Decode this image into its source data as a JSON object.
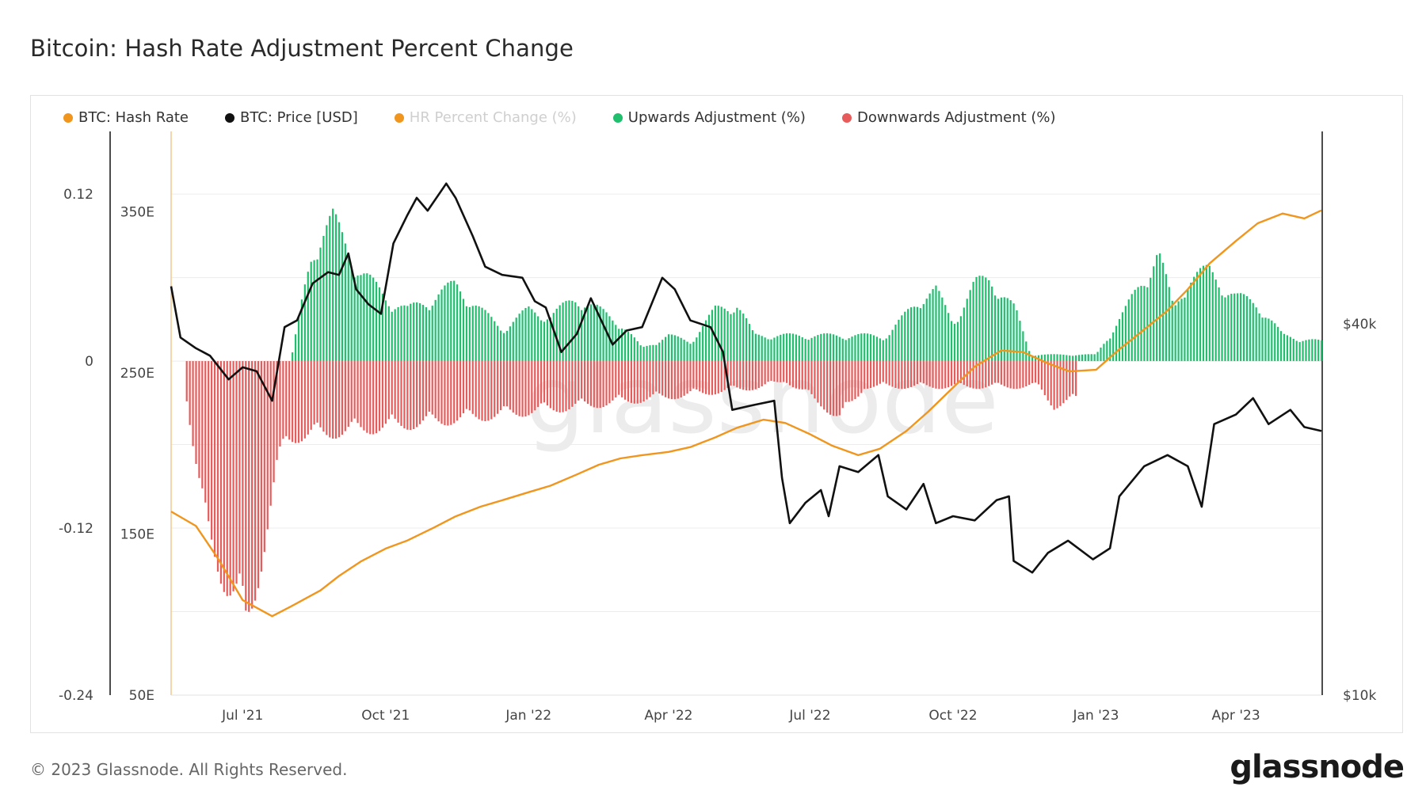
{
  "title": "Bitcoin: Hash Rate Adjustment Percent Change",
  "footer": {
    "copyright": "© 2023 Glassnode. All Rights Reserved.",
    "logo": "glassnode"
  },
  "watermark": "glassnode",
  "legend": [
    {
      "label": "BTC: Hash Rate",
      "color": "#f0961e",
      "enabled": true
    },
    {
      "label": "BTC: Price [USD]",
      "color": "#111111",
      "enabled": true
    },
    {
      "label": "HR Percent Change (%)",
      "color": "#f0961e",
      "enabled": false
    },
    {
      "label": "Upwards Adjustment (%)",
      "color": "#1fbf6e",
      "enabled": true
    },
    {
      "label": "Downwards Adjustment (%)",
      "color": "#e85b5b",
      "enabled": true
    }
  ],
  "chart_data": {
    "type": "line",
    "title": "Bitcoin: Hash Rate Adjustment Percent Change",
    "x_range": [
      "2021-05-16",
      "2023-05-26"
    ],
    "x_ticks": [
      "Jul '21",
      "Oct '21",
      "Jan '22",
      "Apr '22",
      "Jul '22",
      "Oct '22",
      "Jan '23",
      "Apr '23"
    ],
    "y_axes": {
      "percent_change": {
        "ticks": [
          "0.12",
          "0",
          "-0.12",
          "-0.24"
        ],
        "range": [
          -0.24,
          0.165
        ],
        "side": "left-outer"
      },
      "hash_rate": {
        "ticks": [
          "350E",
          "250E",
          "150E",
          "50E"
        ],
        "range": [
          50,
          400
        ],
        "side": "left-inner"
      },
      "price_usd": {
        "ticks": [
          "$40k",
          "$10k"
        ],
        "range": [
          10000,
          82000
        ],
        "scale": "log",
        "side": "right"
      }
    },
    "grid": true,
    "legend_position": "top-left",
    "series": [
      {
        "name": "BTC: Hash Rate",
        "color": "#f0961e",
        "axis": "hash_rate",
        "points": [
          [
            "2021-05-16",
            164
          ],
          [
            "2021-06-01",
            155
          ],
          [
            "2021-06-15",
            135
          ],
          [
            "2021-07-01",
            109
          ],
          [
            "2021-07-20",
            99
          ],
          [
            "2021-08-01",
            105
          ],
          [
            "2021-08-20",
            115
          ],
          [
            "2021-09-01",
            124
          ],
          [
            "2021-09-15",
            133
          ],
          [
            "2021-10-01",
            141
          ],
          [
            "2021-10-15",
            146
          ],
          [
            "2021-11-01",
            154
          ],
          [
            "2021-11-15",
            161
          ],
          [
            "2021-12-01",
            167
          ],
          [
            "2021-12-15",
            171
          ],
          [
            "2022-01-01",
            176
          ],
          [
            "2022-01-15",
            180
          ],
          [
            "2022-02-01",
            187
          ],
          [
            "2022-02-15",
            193
          ],
          [
            "2022-03-01",
            197
          ],
          [
            "2022-03-15",
            199
          ],
          [
            "2022-04-01",
            201
          ],
          [
            "2022-04-15",
            204
          ],
          [
            "2022-05-01",
            210
          ],
          [
            "2022-05-15",
            216
          ],
          [
            "2022-06-01",
            221
          ],
          [
            "2022-06-15",
            219
          ],
          [
            "2022-07-01",
            212
          ],
          [
            "2022-07-15",
            205
          ],
          [
            "2022-08-01",
            199
          ],
          [
            "2022-08-15",
            203
          ],
          [
            "2022-09-01",
            214
          ],
          [
            "2022-09-15",
            226
          ],
          [
            "2022-10-01",
            241
          ],
          [
            "2022-10-15",
            254
          ],
          [
            "2022-11-01",
            264
          ],
          [
            "2022-11-15",
            263
          ],
          [
            "2022-12-01",
            256
          ],
          [
            "2022-12-15",
            251
          ],
          [
            "2023-01-01",
            252
          ],
          [
            "2023-01-15",
            264
          ],
          [
            "2023-02-01",
            277
          ],
          [
            "2023-02-15",
            288
          ],
          [
            "2023-03-01",
            302
          ],
          [
            "2023-03-15",
            318
          ],
          [
            "2023-04-01",
            332
          ],
          [
            "2023-04-15",
            343
          ],
          [
            "2023-05-01",
            349
          ],
          [
            "2023-05-15",
            346
          ],
          [
            "2023-05-26",
            351
          ]
        ]
      },
      {
        "name": "BTC: Price [USD]",
        "color": "#111111",
        "axis": "price_usd",
        "points": [
          [
            "2021-05-16",
            46000
          ],
          [
            "2021-05-22",
            38000
          ],
          [
            "2021-06-01",
            36500
          ],
          [
            "2021-06-10",
            35500
          ],
          [
            "2021-06-22",
            32500
          ],
          [
            "2021-07-01",
            34000
          ],
          [
            "2021-07-10",
            33500
          ],
          [
            "2021-07-20",
            30000
          ],
          [
            "2021-07-28",
            39500
          ],
          [
            "2021-08-05",
            40500
          ],
          [
            "2021-08-15",
            46500
          ],
          [
            "2021-08-25",
            48500
          ],
          [
            "2021-09-01",
            48000
          ],
          [
            "2021-09-07",
            52000
          ],
          [
            "2021-09-12",
            45500
          ],
          [
            "2021-09-20",
            43000
          ],
          [
            "2021-09-28",
            41500
          ],
          [
            "2021-10-06",
            54000
          ],
          [
            "2021-10-15",
            60000
          ],
          [
            "2021-10-21",
            64000
          ],
          [
            "2021-10-28",
            61000
          ],
          [
            "2021-11-09",
            67500
          ],
          [
            "2021-11-15",
            64000
          ],
          [
            "2021-11-26",
            55500
          ],
          [
            "2021-12-04",
            49500
          ],
          [
            "2021-12-15",
            48000
          ],
          [
            "2021-12-28",
            47500
          ],
          [
            "2022-01-05",
            43500
          ],
          [
            "2022-01-12",
            42500
          ],
          [
            "2022-01-22",
            36000
          ],
          [
            "2022-02-01",
            38500
          ],
          [
            "2022-02-10",
            44000
          ],
          [
            "2022-02-24",
            37000
          ],
          [
            "2022-03-05",
            39000
          ],
          [
            "2022-03-15",
            39500
          ],
          [
            "2022-03-28",
            47500
          ],
          [
            "2022-04-05",
            45500
          ],
          [
            "2022-04-15",
            40500
          ],
          [
            "2022-04-28",
            39500
          ],
          [
            "2022-05-06",
            36000
          ],
          [
            "2022-05-12",
            29000
          ],
          [
            "2022-05-25",
            29500
          ],
          [
            "2022-06-08",
            30000
          ],
          [
            "2022-06-13",
            22500
          ],
          [
            "2022-06-18",
            19000
          ],
          [
            "2022-06-28",
            20500
          ],
          [
            "2022-07-08",
            21500
          ],
          [
            "2022-07-13",
            19500
          ],
          [
            "2022-07-20",
            23500
          ],
          [
            "2022-08-01",
            23000
          ],
          [
            "2022-08-14",
            24500
          ],
          [
            "2022-08-20",
            21000
          ],
          [
            "2022-09-01",
            20000
          ],
          [
            "2022-09-12",
            22000
          ],
          [
            "2022-09-20",
            19000
          ],
          [
            "2022-10-01",
            19500
          ],
          [
            "2022-10-15",
            19200
          ],
          [
            "2022-10-29",
            20700
          ],
          [
            "2022-11-06",
            21000
          ],
          [
            "2022-11-09",
            16500
          ],
          [
            "2022-11-21",
            15800
          ],
          [
            "2022-12-01",
            17000
          ],
          [
            "2022-12-14",
            17800
          ],
          [
            "2022-12-30",
            16600
          ],
          [
            "2023-01-10",
            17300
          ],
          [
            "2023-01-16",
            21000
          ],
          [
            "2023-02-01",
            23500
          ],
          [
            "2023-02-16",
            24500
          ],
          [
            "2023-03-01",
            23500
          ],
          [
            "2023-03-10",
            20200
          ],
          [
            "2023-03-18",
            27500
          ],
          [
            "2023-04-01",
            28500
          ],
          [
            "2023-04-12",
            30300
          ],
          [
            "2023-04-22",
            27500
          ],
          [
            "2023-05-06",
            29000
          ],
          [
            "2023-05-15",
            27200
          ],
          [
            "2023-05-26",
            26800
          ]
        ]
      },
      {
        "name": "Upwards Adjustment (%)",
        "color": "#1fbf6e",
        "axis": "percent_change",
        "type": "bar",
        "points": [
          [
            "2021-08-01",
            0.0
          ],
          [
            "2021-08-15",
            0.09
          ],
          [
            "2021-08-28",
            0.11
          ],
          [
            "2021-09-15",
            0.07
          ],
          [
            "2021-10-01",
            0.05
          ],
          [
            "2021-10-15",
            0.04
          ],
          [
            "2021-11-01",
            0.05
          ],
          [
            "2021-11-15",
            0.06
          ],
          [
            "2021-12-01",
            0.04
          ],
          [
            "2021-12-15",
            0.025
          ],
          [
            "2022-01-01",
            0.04
          ],
          [
            "2022-01-15",
            0.035
          ],
          [
            "2022-02-01",
            0.05
          ],
          [
            "2022-02-15",
            0.04
          ],
          [
            "2022-03-01",
            0.03
          ],
          [
            "2022-03-15",
            0.01
          ],
          [
            "2022-04-01",
            0.02
          ],
          [
            "2022-04-15",
            0.015
          ],
          [
            "2022-05-01",
            0.04
          ],
          [
            "2022-05-15",
            0.045
          ],
          [
            "2022-05-26",
            0.02
          ],
          [
            "2022-08-20",
            0.02
          ],
          [
            "2022-09-10",
            0.05
          ],
          [
            "2022-09-20",
            0.055
          ],
          [
            "2022-10-01",
            0.03
          ],
          [
            "2022-10-15",
            0.06
          ],
          [
            "2022-10-25",
            0.065
          ],
          [
            "2022-11-10",
            0.04
          ],
          [
            "2022-11-20",
            0.005
          ],
          [
            "2023-01-01",
            0.005
          ],
          [
            "2023-01-20",
            0.04
          ],
          [
            "2023-02-10",
            0.085
          ],
          [
            "2023-02-20",
            0.04
          ],
          [
            "2023-03-01",
            0.065
          ],
          [
            "2023-03-15",
            0.07
          ],
          [
            "2023-04-01",
            0.05
          ],
          [
            "2023-04-15",
            0.045
          ],
          [
            "2023-05-01",
            0.02
          ],
          [
            "2023-05-26",
            0.015
          ]
        ]
      },
      {
        "name": "Downwards Adjustment (%)",
        "color": "#e85b5b",
        "axis": "percent_change",
        "type": "bar",
        "points": [
          [
            "2021-05-25",
            -0.02
          ],
          [
            "2021-06-05",
            -0.12
          ],
          [
            "2021-06-20",
            -0.17
          ],
          [
            "2021-07-03",
            -0.21
          ],
          [
            "2021-07-15",
            -0.14
          ],
          [
            "2021-07-28",
            -0.06
          ],
          [
            "2022-06-01",
            -0.02
          ],
          [
            "2022-06-15",
            -0.015
          ],
          [
            "2022-07-10",
            -0.035
          ],
          [
            "2022-07-20",
            -0.045
          ],
          [
            "2022-08-05",
            -0.02
          ],
          [
            "2022-11-25",
            -0.02
          ],
          [
            "2022-12-05",
            -0.035
          ],
          [
            "2022-12-20",
            -0.03
          ]
        ]
      }
    ]
  }
}
